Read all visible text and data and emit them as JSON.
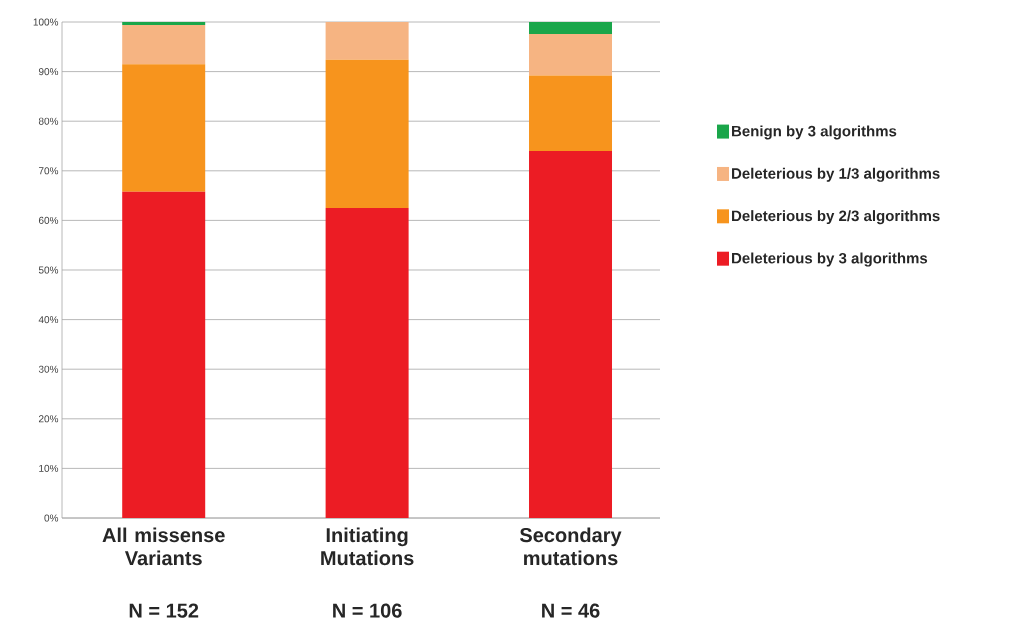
{
  "chart_data": {
    "type": "bar",
    "stacked": true,
    "categories": [
      "All missense Variants",
      "Initiating Mutations",
      "Secondary mutations"
    ],
    "series": [
      {
        "name": "Deleterious by 3 algorithms",
        "color": "#ec1c24",
        "values": [
          65.8,
          62.5,
          74.0
        ]
      },
      {
        "name": "Deleterious by 2/3 algorithms",
        "color": "#f7941d",
        "values": [
          25.7,
          29.9,
          15.2
        ]
      },
      {
        "name": "Deleterious by 1/3 algorithms",
        "color": "#f6b482",
        "values": [
          7.9,
          7.6,
          8.4
        ]
      },
      {
        "name": "Benign by 3 algorithms",
        "color": "#1aa64a",
        "values": [
          0.6,
          0,
          2.4
        ]
      }
    ],
    "ylim": [
      0,
      100
    ],
    "yticks": [
      {
        "value": 0,
        "label": "0%"
      },
      {
        "value": 10,
        "label": "10%"
      },
      {
        "value": 20,
        "label": "20%"
      },
      {
        "value": 30,
        "label": "30%"
      },
      {
        "value": 40,
        "label": "40%"
      },
      {
        "value": 50,
        "label": "50%"
      },
      {
        "value": 60,
        "label": "60%"
      },
      {
        "value": 70,
        "label": "70%"
      },
      {
        "value": 80,
        "label": "80%"
      },
      {
        "value": 90,
        "label": "90%"
      },
      {
        "value": 100,
        "label": "100%"
      }
    ],
    "grid": "y",
    "legend": "right",
    "annotations": [
      "N = 152",
      "N = 106",
      "N = 46"
    ]
  }
}
